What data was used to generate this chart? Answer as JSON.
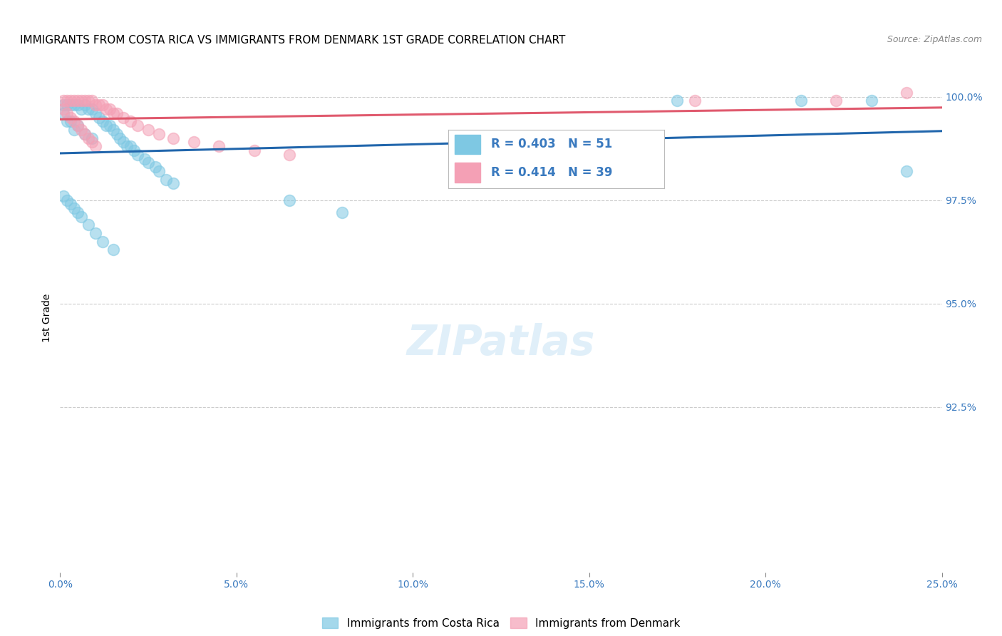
{
  "title": "IMMIGRANTS FROM COSTA RICA VS IMMIGRANTS FROM DENMARK 1ST GRADE CORRELATION CHART",
  "source": "Source: ZipAtlas.com",
  "ylabel": "1st Grade",
  "ylabel_right_ticks": [
    "100.0%",
    "97.5%",
    "95.0%",
    "92.5%"
  ],
  "ylabel_right_vals": [
    1.0,
    0.975,
    0.95,
    0.925
  ],
  "legend1_label": "Immigrants from Costa Rica",
  "legend2_label": "Immigrants from Denmark",
  "R_costa_rica": 0.403,
  "N_costa_rica": 51,
  "R_denmark": 0.414,
  "N_denmark": 39,
  "color_costa_rica": "#7ec8e3",
  "color_denmark": "#f4a0b5",
  "line_color_costa_rica": "#2166ac",
  "line_color_denmark": "#e05a6e",
  "background_color": "#ffffff",
  "title_fontsize": 11,
  "xlim": [
    0.0,
    0.25
  ],
  "ylim": [
    0.885,
    1.008
  ],
  "xticks": [
    0.0,
    0.05,
    0.1,
    0.15,
    0.2,
    0.25
  ],
  "xticklabels": [
    "0.0%",
    "5.0%",
    "10.0%",
    "15.0%",
    "20.0%",
    "25.0%"
  ],
  "costa_rica_x": [
    0.001,
    0.001,
    0.002,
    0.002,
    0.003,
    0.003,
    0.004,
    0.004,
    0.005,
    0.005,
    0.006,
    0.007,
    0.007,
    0.008,
    0.009,
    0.009,
    0.01,
    0.011,
    0.012,
    0.013,
    0.014,
    0.015,
    0.016,
    0.017,
    0.018,
    0.019,
    0.02,
    0.021,
    0.022,
    0.024,
    0.025,
    0.027,
    0.028,
    0.03,
    0.032,
    0.001,
    0.002,
    0.003,
    0.004,
    0.005,
    0.006,
    0.008,
    0.01,
    0.012,
    0.015,
    0.065,
    0.08,
    0.175,
    0.21,
    0.23,
    0.24
  ],
  "costa_rica_y": [
    0.998,
    0.996,
    0.998,
    0.994,
    0.998,
    0.994,
    0.998,
    0.992,
    0.998,
    0.993,
    0.997,
    0.998,
    0.991,
    0.997,
    0.997,
    0.99,
    0.996,
    0.995,
    0.994,
    0.993,
    0.993,
    0.992,
    0.991,
    0.99,
    0.989,
    0.988,
    0.988,
    0.987,
    0.986,
    0.985,
    0.984,
    0.983,
    0.982,
    0.98,
    0.979,
    0.976,
    0.975,
    0.974,
    0.973,
    0.972,
    0.971,
    0.969,
    0.967,
    0.965,
    0.963,
    0.975,
    0.972,
    0.999,
    0.999,
    0.999,
    0.982
  ],
  "denmark_x": [
    0.001,
    0.001,
    0.002,
    0.002,
    0.003,
    0.003,
    0.004,
    0.004,
    0.005,
    0.005,
    0.006,
    0.006,
    0.007,
    0.007,
    0.008,
    0.008,
    0.009,
    0.009,
    0.01,
    0.01,
    0.011,
    0.012,
    0.013,
    0.014,
    0.015,
    0.016,
    0.018,
    0.02,
    0.022,
    0.025,
    0.028,
    0.032,
    0.038,
    0.045,
    0.055,
    0.065,
    0.18,
    0.22,
    0.24
  ],
  "denmark_y": [
    0.999,
    0.997,
    0.999,
    0.996,
    0.999,
    0.995,
    0.999,
    0.994,
    0.999,
    0.993,
    0.999,
    0.992,
    0.999,
    0.991,
    0.999,
    0.99,
    0.999,
    0.989,
    0.998,
    0.988,
    0.998,
    0.998,
    0.997,
    0.997,
    0.996,
    0.996,
    0.995,
    0.994,
    0.993,
    0.992,
    0.991,
    0.99,
    0.989,
    0.988,
    0.987,
    0.986,
    0.999,
    0.999,
    1.001
  ]
}
